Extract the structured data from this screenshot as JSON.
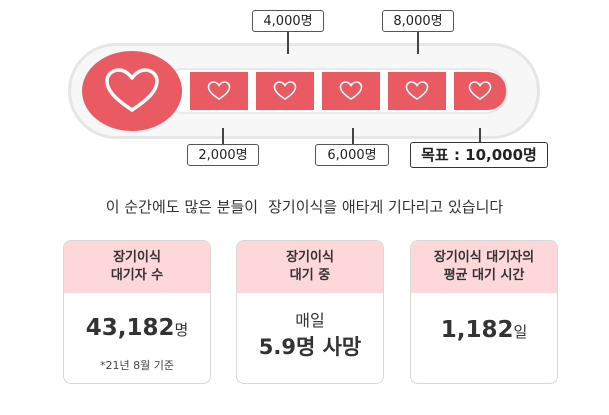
{
  "thermometer": {
    "markers_top": [
      "4,000명",
      "8,000명"
    ],
    "markers_bottom": [
      "2,000명",
      "6,000명"
    ],
    "goal": "목표 : 10,000명",
    "colors": {
      "fill": "#ea5a63",
      "track": "#f7f7f7"
    }
  },
  "headline": {
    "part1": "이 순간에도 많은 분들이",
    "part2": "장기이식을 애타게 기다리고 있습니다"
  },
  "cards": [
    {
      "title_line1": "장기이식",
      "title_line2": "대기자 수",
      "value": "43,182",
      "unit": "명",
      "note": "*21년 8월 기준"
    },
    {
      "title_line1": "장기이식",
      "title_line2": "대기 중",
      "value_prefix": "매일",
      "value": "5.9명 사망"
    },
    {
      "title_line1": "장기이식 대기자의",
      "title_line2": "평균 대기 시간",
      "value": "1,182",
      "unit": "일"
    }
  ]
}
